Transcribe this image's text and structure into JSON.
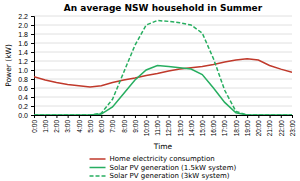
{
  "chart_data": {
    "type": "line",
    "title": "An average NSW household in Summer",
    "xlabel": "Time",
    "ylabel": "Power (kW)",
    "categories": [
      "0:00",
      "1:00",
      "2:00",
      "3:00",
      "4:00",
      "5:00",
      "6:00",
      "7:00",
      "8:00",
      "9:00",
      "10:00",
      "11:00",
      "12:00",
      "13:00",
      "14:00",
      "15:00",
      "16:00",
      "17:00",
      "18:00",
      "19:00",
      "20:00",
      "21:00",
      "22:00",
      "23:00"
    ],
    "series": [
      {
        "name": "Home electricity consumption",
        "color": "#c0392b",
        "line_style": "solid",
        "values": [
          0.85,
          0.78,
          0.72,
          0.68,
          0.65,
          0.62,
          0.65,
          0.72,
          0.78,
          0.82,
          0.88,
          0.92,
          0.98,
          1.02,
          1.05,
          1.08,
          1.12,
          1.18,
          1.22,
          1.25,
          1.22,
          1.1,
          1.02,
          0.95
        ]
      },
      {
        "name": "Solar PV generation (1.5kW system)",
        "color": "#27ae60",
        "line_style": "solid",
        "values": [
          0.0,
          0.0,
          0.0,
          0.0,
          0.0,
          0.0,
          0.02,
          0.18,
          0.48,
          0.78,
          1.0,
          1.1,
          1.08,
          1.05,
          1.02,
          0.9,
          0.6,
          0.28,
          0.05,
          0.0,
          0.0,
          0.0,
          0.0,
          0.0
        ]
      },
      {
        "name": "Solar PV generation (3kW system)",
        "color": "#27ae60",
        "line_style": "dashed",
        "values": [
          0.0,
          0.0,
          0.0,
          0.0,
          0.0,
          0.0,
          0.04,
          0.35,
          0.95,
          1.55,
          2.0,
          2.1,
          2.08,
          2.05,
          2.0,
          1.82,
          1.25,
          0.55,
          0.08,
          0.0,
          0.0,
          0.0,
          0.0,
          0.0
        ]
      }
    ],
    "ylim": [
      0.0,
      2.2
    ],
    "yticks": [
      {
        "value": 0.0,
        "label": "0.0"
      },
      0.2,
      0.4,
      0.6,
      0.8,
      {
        "value": 1.0,
        "label": "1.0"
      },
      1.2,
      1.4,
      1.6,
      1.8,
      {
        "value": 2.0,
        "label": "2.0"
      },
      2.2
    ],
    "grid": true,
    "legend": "bottom"
  }
}
